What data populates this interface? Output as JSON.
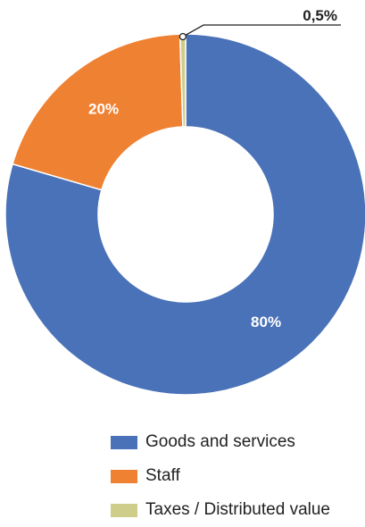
{
  "chart_data": {
    "type": "pie",
    "variant": "donut",
    "series": [
      {
        "name": "Goods and services",
        "value": 79.5,
        "label": "80%",
        "color": "#4a72b8"
      },
      {
        "name": "Staff",
        "value": 20.0,
        "label": "20%",
        "color": "#ef8132"
      },
      {
        "name": "Taxes / Distributed value",
        "value": 0.5,
        "label": "0,5%",
        "color": "#cfcd8a"
      }
    ],
    "legend_position": "bottom"
  }
}
